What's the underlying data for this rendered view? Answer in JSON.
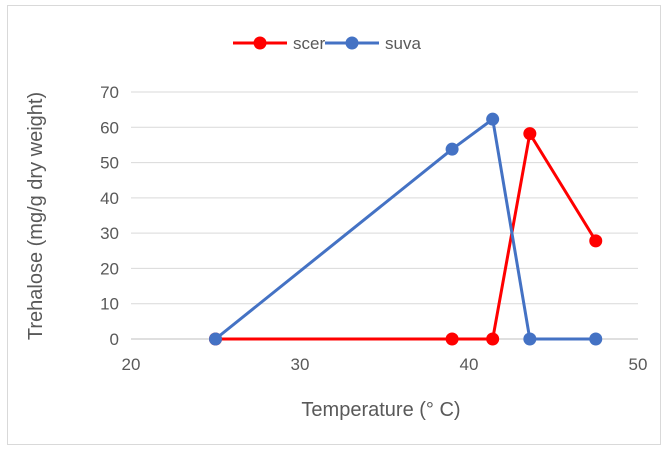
{
  "chart_data": {
    "type": "line",
    "title": "",
    "xlabel": "Temperature (° C)",
    "ylabel": "Trehalose (mg/g dry weight)",
    "xlim": [
      20,
      50
    ],
    "ylim": [
      0,
      70
    ],
    "xticks": [
      20,
      30,
      40,
      50
    ],
    "yticks": [
      0,
      10,
      20,
      30,
      40,
      50,
      60,
      70
    ],
    "grid": true,
    "legend_position": "top",
    "series": [
      {
        "name": "scer",
        "color": "#ff0000",
        "points": [
          [
            25,
            0
          ],
          [
            39,
            0
          ],
          [
            41.4,
            0
          ],
          [
            43.6,
            58.2
          ],
          [
            47.5,
            27.8
          ]
        ]
      },
      {
        "name": "suva",
        "color": "#4472c4",
        "points": [
          [
            25,
            0
          ],
          [
            39,
            53.8
          ],
          [
            41.4,
            62.3
          ],
          [
            43.6,
            0
          ],
          [
            47.5,
            0
          ]
        ]
      }
    ]
  }
}
